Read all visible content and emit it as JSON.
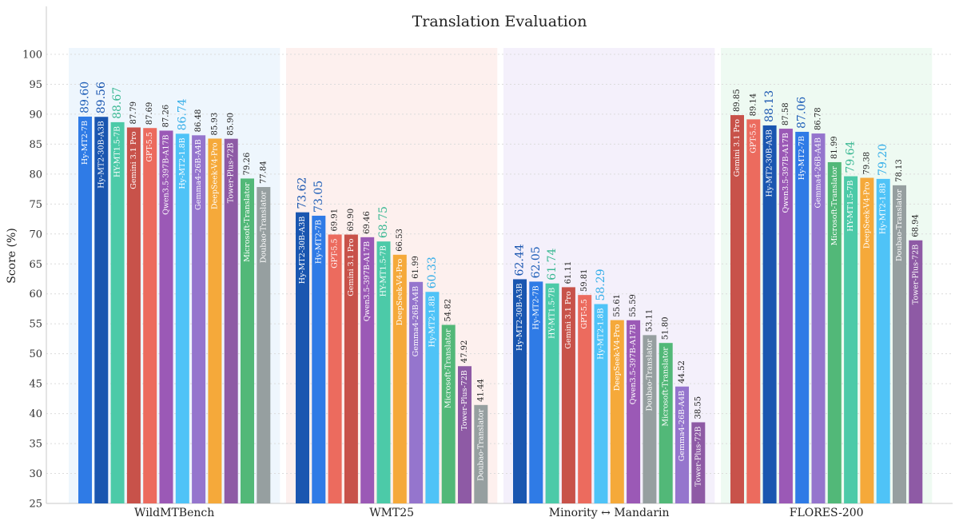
{
  "chart_data": {
    "type": "bar",
    "title": "Translation Evaluation",
    "ylabel": "Score (%)",
    "xlabel": "",
    "ylim": [
      25,
      100
    ],
    "yticks": [
      25,
      30,
      35,
      40,
      45,
      50,
      55,
      60,
      65,
      70,
      75,
      80,
      85,
      90,
      95,
      100
    ],
    "grid": true,
    "legend": "none",
    "colors": {
      "Hy-MT2-7B": "#2f7be6",
      "Hy-MT2-30B-A3B": "#1a56b0",
      "HY-MT1.5-7B": "#4ccaa8",
      "Gemini 3.1 Pro": "#c8524a",
      "GPT-5.5": "#ec6b5e",
      "Qwen3.5-397B-A17B": "#9b59b6",
      "Hy-MT2-1.8B": "#4fc3f7",
      "Gemma4-26B-A4B": "#9575cd",
      "DeepSeek-V4-Pro": "#f5a93a",
      "Tower-Plus-72B": "#8e5aa5",
      "Microsoft-Translator": "#52b878",
      "Doubao-Translator": "#969fa0"
    },
    "highlight_label_colors": {
      "Hy-MT2-7B": "#1f5fb8",
      "Hy-MT2-30B-A3B": "#1a56b0",
      "HY-MT1.5-7B": "#3ab893",
      "Hy-MT2-1.8B": "#35aee8"
    },
    "groups": [
      {
        "name": "WildMTBench",
        "panel_color": "#eef6fd",
        "bars": [
          {
            "model": "Hy-MT2-7B",
            "value": 89.6,
            "label": "89.60",
            "highlight": true
          },
          {
            "model": "Hy-MT2-30B-A3B",
            "value": 89.56,
            "label": "89.56",
            "highlight": true
          },
          {
            "model": "HY-MT1.5-7B",
            "value": 88.67,
            "label": "88.67",
            "highlight": true
          },
          {
            "model": "Gemini 3.1 Pro",
            "value": 87.79,
            "label": "87.79",
            "highlight": false
          },
          {
            "model": "GPT-5.5",
            "value": 87.69,
            "label": "87.69",
            "highlight": false
          },
          {
            "model": "Qwen3.5-397B-A17B",
            "value": 87.26,
            "label": "87.26",
            "highlight": false
          },
          {
            "model": "Hy-MT2-1.8B",
            "value": 86.74,
            "label": "86.74",
            "highlight": true
          },
          {
            "model": "Gemma4-26B-A4B",
            "value": 86.48,
            "label": "86.48",
            "highlight": false
          },
          {
            "model": "DeepSeek-V4-Pro",
            "value": 85.93,
            "label": "85.93",
            "highlight": false
          },
          {
            "model": "Tower-Plus-72B",
            "value": 85.9,
            "label": "85.90",
            "highlight": false
          },
          {
            "model": "Microsoft-Translator",
            "value": 79.26,
            "label": "79.26",
            "highlight": false
          },
          {
            "model": "Doubao-Translator",
            "value": 77.84,
            "label": "77.84",
            "highlight": false
          }
        ]
      },
      {
        "name": "WMT25",
        "panel_color": "#fdf0ee",
        "bars": [
          {
            "model": "Hy-MT2-30B-A3B",
            "value": 73.62,
            "label": "73.62",
            "highlight": true
          },
          {
            "model": "Hy-MT2-7B",
            "value": 73.05,
            "label": "73.05",
            "highlight": true
          },
          {
            "model": "GPT-5.5",
            "value": 69.91,
            "label": "69.91",
            "highlight": false
          },
          {
            "model": "Gemini 3.1 Pro",
            "value": 69.9,
            "label": "69.90",
            "highlight": false
          },
          {
            "model": "Qwen3.5-397B-A17B",
            "value": 69.46,
            "label": "69.46",
            "highlight": false
          },
          {
            "model": "HY-MT1.5-7B",
            "value": 68.75,
            "label": "68.75",
            "highlight": true
          },
          {
            "model": "DeepSeek-V4-Pro",
            "value": 66.53,
            "label": "66.53",
            "highlight": false
          },
          {
            "model": "Gemma4-26B-A4B",
            "value": 61.99,
            "label": "61.99",
            "highlight": false
          },
          {
            "model": "Hy-MT2-1.8B",
            "value": 60.33,
            "label": "60.33",
            "highlight": true
          },
          {
            "model": "Microsoft-Translator",
            "value": 54.82,
            "label": "54.82",
            "highlight": false
          },
          {
            "model": "Tower-Plus-72B",
            "value": 47.92,
            "label": "47.92",
            "highlight": false
          },
          {
            "model": "Doubao-Translator",
            "value": 41.44,
            "label": "41.44",
            "highlight": false
          }
        ]
      },
      {
        "name": "Minority ↔ Mandarin",
        "panel_color": "#f4f0fb",
        "bars": [
          {
            "model": "Hy-MT2-30B-A3B",
            "value": 62.44,
            "label": "62.44",
            "highlight": true
          },
          {
            "model": "Hy-MT2-7B",
            "value": 62.05,
            "label": "62.05",
            "highlight": true
          },
          {
            "model": "HY-MT1.5-7B",
            "value": 61.74,
            "label": "61.74",
            "highlight": true
          },
          {
            "model": "Gemini 3.1 Pro",
            "value": 61.11,
            "label": "61.11",
            "highlight": false
          },
          {
            "model": "GPT-5.5",
            "value": 59.81,
            "label": "59.81",
            "highlight": false
          },
          {
            "model": "Hy-MT2-1.8B",
            "value": 58.29,
            "label": "58.29",
            "highlight": true
          },
          {
            "model": "DeepSeek-V4-Pro",
            "value": 55.61,
            "label": "55.61",
            "highlight": false
          },
          {
            "model": "Qwen3.5-397B-A17B",
            "value": 55.59,
            "label": "55.59",
            "highlight": false
          },
          {
            "model": "Doubao-Translator",
            "value": 53.11,
            "label": "53.11",
            "highlight": false
          },
          {
            "model": "Microsoft-Translator",
            "value": 51.8,
            "label": "51.80",
            "highlight": false
          },
          {
            "model": "Gemma4-26B-A4B",
            "value": 44.52,
            "label": "44.52",
            "highlight": false
          },
          {
            "model": "Tower-Plus-72B",
            "value": 38.55,
            "label": "38.55",
            "highlight": false
          }
        ]
      },
      {
        "name": "FLORES-200",
        "panel_color": "#eefaf2",
        "bars": [
          {
            "model": "Gemini 3.1 Pro",
            "value": 89.85,
            "label": "89.85",
            "highlight": false
          },
          {
            "model": "GPT-5.5",
            "value": 89.14,
            "label": "89.14",
            "highlight": false
          },
          {
            "model": "Hy-MT2-30B-A3B",
            "value": 88.13,
            "label": "88.13",
            "highlight": true
          },
          {
            "model": "Qwen3.5-397B-A17B",
            "value": 87.58,
            "label": "87.58",
            "highlight": false
          },
          {
            "model": "Hy-MT2-7B",
            "value": 87.06,
            "label": "87.06",
            "highlight": true
          },
          {
            "model": "Gemma4-26B-A4B",
            "value": 86.78,
            "label": "86.78",
            "highlight": false
          },
          {
            "model": "Microsoft-Translator",
            "value": 81.99,
            "label": "81.99",
            "highlight": false
          },
          {
            "model": "HY-MT1.5-7B",
            "value": 79.64,
            "label": "79.64",
            "highlight": true
          },
          {
            "model": "DeepSeek-V4-Pro",
            "value": 79.38,
            "label": "79.38",
            "highlight": false
          },
          {
            "model": "Hy-MT2-1.8B",
            "value": 79.2,
            "label": "79.20",
            "highlight": true
          },
          {
            "model": "Doubao-Translator",
            "value": 78.13,
            "label": "78.13",
            "highlight": false
          },
          {
            "model": "Tower-Plus-72B",
            "value": 68.94,
            "label": "68.94",
            "highlight": false
          }
        ]
      }
    ]
  }
}
